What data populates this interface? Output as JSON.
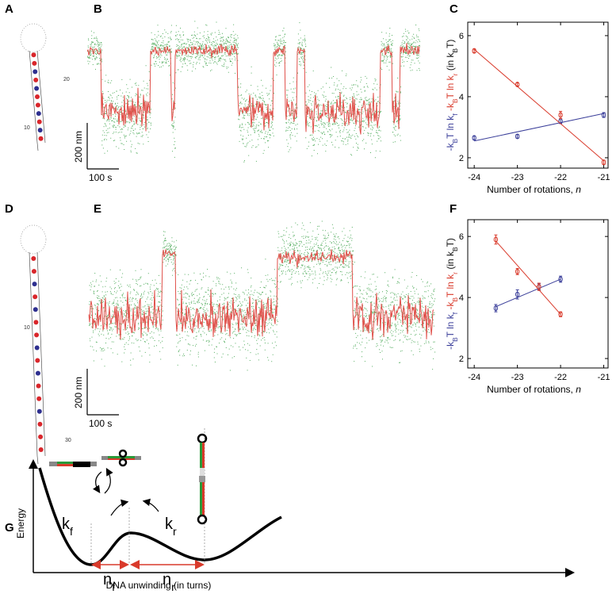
{
  "panel_labels": [
    "A",
    "B",
    "C",
    "D",
    "E",
    "F",
    "G"
  ],
  "hairpins": [
    {
      "labels": [
        "10",
        "20"
      ]
    },
    {
      "labels": [
        "10",
        "30"
      ]
    }
  ],
  "traces": [
    {
      "scale_y": "200 nm",
      "scale_x": "100 s"
    },
    {
      "scale_y": "200 nm",
      "scale_x": "100 s"
    }
  ],
  "chart_data": [
    {
      "type": "scatter",
      "ylabel": {
        "parts": [
          {
            "text": "-k",
            "color": "#3b3f9a"
          },
          {
            "text": "B",
            "color": "#3b3f9a",
            "style": "sub"
          },
          {
            "text": "T ln k",
            "color": "#3b3f9a"
          },
          {
            "text": "f",
            "color": "#3b3f9a",
            "style": "sub"
          },
          {
            "text": " -k",
            "color": "#d93a2b"
          },
          {
            "text": "B",
            "color": "#d93a2b",
            "style": "sub"
          },
          {
            "text": "T ln k",
            "color": "#d93a2b"
          },
          {
            "text": "r",
            "color": "#d93a2b",
            "style": "sub"
          },
          {
            "text": " (in k",
            "color": "#111111"
          },
          {
            "text": "B",
            "color": "#111111",
            "style": "sub"
          },
          {
            "text": "T)",
            "color": "#111111"
          }
        ]
      },
      "xlabel": {
        "parts": [
          {
            "text": "Number of rotations, "
          },
          {
            "text": "n",
            "style": "italic"
          }
        ]
      },
      "xlim": [
        -24.15,
        -20.9
      ],
      "ylim": [
        1.66,
        6.44
      ],
      "xticks": [
        -24,
        -23,
        -22,
        -21
      ],
      "yticks": [
        2,
        4,
        6
      ],
      "series": [
        {
          "color": "#3b3f9a",
          "x": [
            -24,
            -23,
            -22,
            -21
          ],
          "values": [
            2.65,
            2.7,
            3.2,
            3.4
          ],
          "errors": [
            0.06,
            0.06,
            0.08,
            0.08
          ],
          "fit_x": [
            -24,
            -21
          ],
          "fit_y": [
            2.55,
            3.45
          ]
        },
        {
          "color": "#d93a2b",
          "x": [
            -24,
            -23,
            -22,
            -21
          ],
          "values": [
            5.5,
            4.4,
            3.4,
            1.85
          ],
          "errors": [
            0.06,
            0.05,
            0.12,
            0.07
          ],
          "fit_x": [
            -24,
            -21
          ],
          "fit_y": [
            5.55,
            1.9
          ]
        }
      ]
    },
    {
      "type": "scatter",
      "ylabel": {
        "parts": [
          {
            "text": "-k",
            "color": "#3b3f9a"
          },
          {
            "text": "B",
            "color": "#3b3f9a",
            "style": "sub"
          },
          {
            "text": "T ln k",
            "color": "#3b3f9a"
          },
          {
            "text": "f",
            "color": "#3b3f9a",
            "style": "sub"
          },
          {
            "text": " -k",
            "color": "#d93a2b"
          },
          {
            "text": "B",
            "color": "#d93a2b",
            "style": "sub"
          },
          {
            "text": "T ln k",
            "color": "#d93a2b"
          },
          {
            "text": "r",
            "color": "#d93a2b",
            "style": "sub"
          },
          {
            "text": " (in k",
            "color": "#111111"
          },
          {
            "text": "B",
            "color": "#111111",
            "style": "sub"
          },
          {
            "text": "T)",
            "color": "#111111"
          }
        ]
      },
      "xlabel": {
        "parts": [
          {
            "text": "Number of rotations, "
          },
          {
            "text": "n",
            "style": "italic"
          }
        ]
      },
      "xlim": [
        -24.15,
        -20.9
      ],
      "ylim": [
        1.69,
        6.55
      ],
      "xticks": [
        -24,
        -23,
        -22,
        -21
      ],
      "yticks": [
        2,
        4,
        6
      ],
      "series": [
        {
          "color": "#3b3f9a",
          "x": [
            -23.5,
            -23,
            -22.5,
            -22
          ],
          "values": [
            3.65,
            4.1,
            4.35,
            4.6
          ],
          "errors": [
            0.12,
            0.15,
            0.1,
            0.1
          ],
          "fit_x": [
            -23.5,
            -22
          ],
          "fit_y": [
            3.7,
            4.6
          ]
        },
        {
          "color": "#d93a2b",
          "x": [
            -23.5,
            -23,
            -22.5,
            -22
          ],
          "values": [
            5.9,
            4.85,
            4.35,
            3.45
          ],
          "errors": [
            0.15,
            0.1,
            0.12,
            0.08
          ],
          "fit_x": [
            -23.5,
            -22
          ],
          "fit_y": [
            5.85,
            3.45
          ]
        }
      ]
    }
  ],
  "diagram": {
    "ylabel": "Energy",
    "xlabel": "DNA unwinding (in turns)",
    "rates": [
      {
        "parts": [
          {
            "text": "k"
          },
          {
            "text": "f",
            "style": "sub"
          }
        ]
      },
      {
        "parts": [
          {
            "text": "k"
          },
          {
            "text": "r",
            "style": "sub"
          }
        ]
      }
    ],
    "distances": [
      {
        "parts": [
          {
            "text": "n"
          },
          {
            "text": "f",
            "style": "sub"
          }
        ]
      },
      {
        "parts": [
          {
            "text": "n"
          },
          {
            "text": "r",
            "style": "sub"
          }
        ]
      }
    ]
  }
}
